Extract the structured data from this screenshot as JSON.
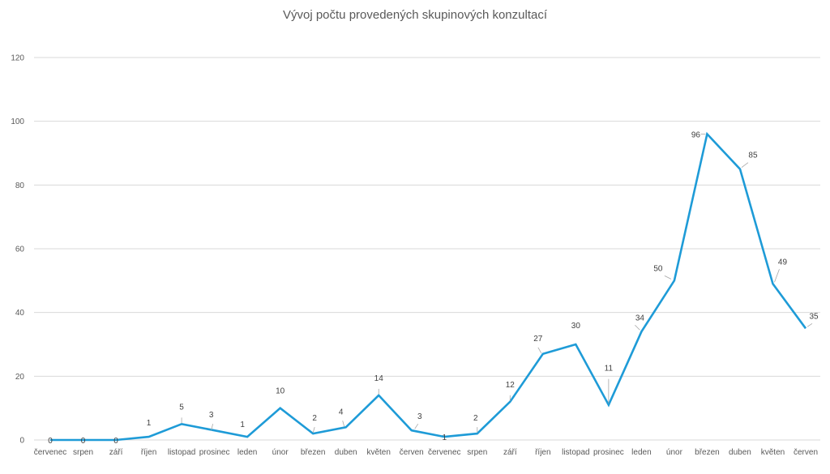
{
  "chart_data": {
    "type": "line",
    "title": "Vývoj počtu provedených skupinových konzultací",
    "xlabel": "",
    "ylabel": "",
    "categories": [
      "červenec",
      "srpen",
      "září",
      "říjen",
      "listopad",
      "prosinec",
      "leden",
      "únor",
      "březen",
      "duben",
      "květen",
      "červen",
      "červenec",
      "srpen",
      "září",
      "říjen",
      "listopad",
      "prosinec",
      "leden",
      "únor",
      "březen",
      "duben",
      "květen",
      "červen"
    ],
    "series": [
      {
        "values": [
          0,
          0,
          0,
          1,
          5,
          3,
          1,
          10,
          2,
          4,
          14,
          3,
          1,
          2,
          12,
          27,
          30,
          11,
          34,
          50,
          96,
          85,
          49,
          35
        ]
      }
    ],
    "ylim": [
      0,
      120
    ],
    "yticks": [
      0,
      20,
      40,
      60,
      80,
      100,
      120
    ],
    "grid": true,
    "legend": "none",
    "line_color": "#1e9bd7"
  }
}
